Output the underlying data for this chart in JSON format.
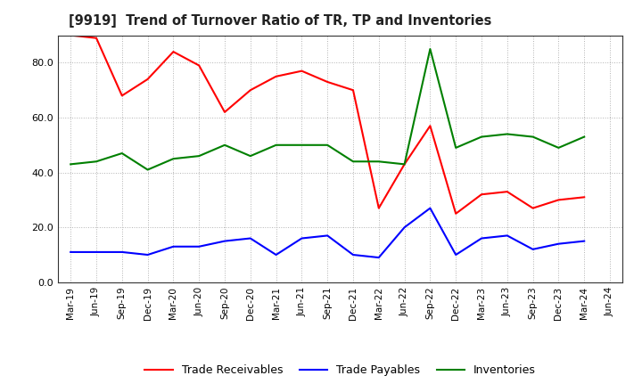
{
  "title": "[9919]  Trend of Turnover Ratio of TR, TP and Inventories",
  "x_labels": [
    "Mar-19",
    "Jun-19",
    "Sep-19",
    "Dec-19",
    "Mar-20",
    "Jun-20",
    "Sep-20",
    "Dec-20",
    "Mar-21",
    "Jun-21",
    "Sep-21",
    "Dec-21",
    "Mar-22",
    "Jun-22",
    "Sep-22",
    "Dec-22",
    "Mar-23",
    "Jun-23",
    "Sep-23",
    "Dec-23",
    "Mar-24",
    "Jun-24"
  ],
  "trade_receivables": [
    90,
    89,
    68,
    74,
    84,
    79,
    62,
    70,
    75,
    77,
    73,
    70,
    27,
    43,
    57,
    25,
    32,
    33,
    27,
    30,
    31,
    null
  ],
  "trade_payables": [
    11,
    11,
    11,
    10,
    13,
    13,
    15,
    16,
    10,
    16,
    17,
    10,
    9,
    20,
    27,
    10,
    16,
    17,
    12,
    14,
    15,
    null
  ],
  "inventories": [
    43,
    44,
    47,
    41,
    45,
    46,
    50,
    46,
    50,
    50,
    50,
    44,
    44,
    43,
    85,
    49,
    53,
    54,
    53,
    49,
    53,
    null
  ],
  "ylim": [
    0,
    90
  ],
  "yticks": [
    0.0,
    20.0,
    40.0,
    60.0,
    80.0
  ],
  "color_tr": "#ff0000",
  "color_tp": "#0000ff",
  "color_inv": "#008000",
  "legend_labels": [
    "Trade Receivables",
    "Trade Payables",
    "Inventories"
  ],
  "background_color": "#ffffff",
  "grid_color": "#aaaaaa"
}
